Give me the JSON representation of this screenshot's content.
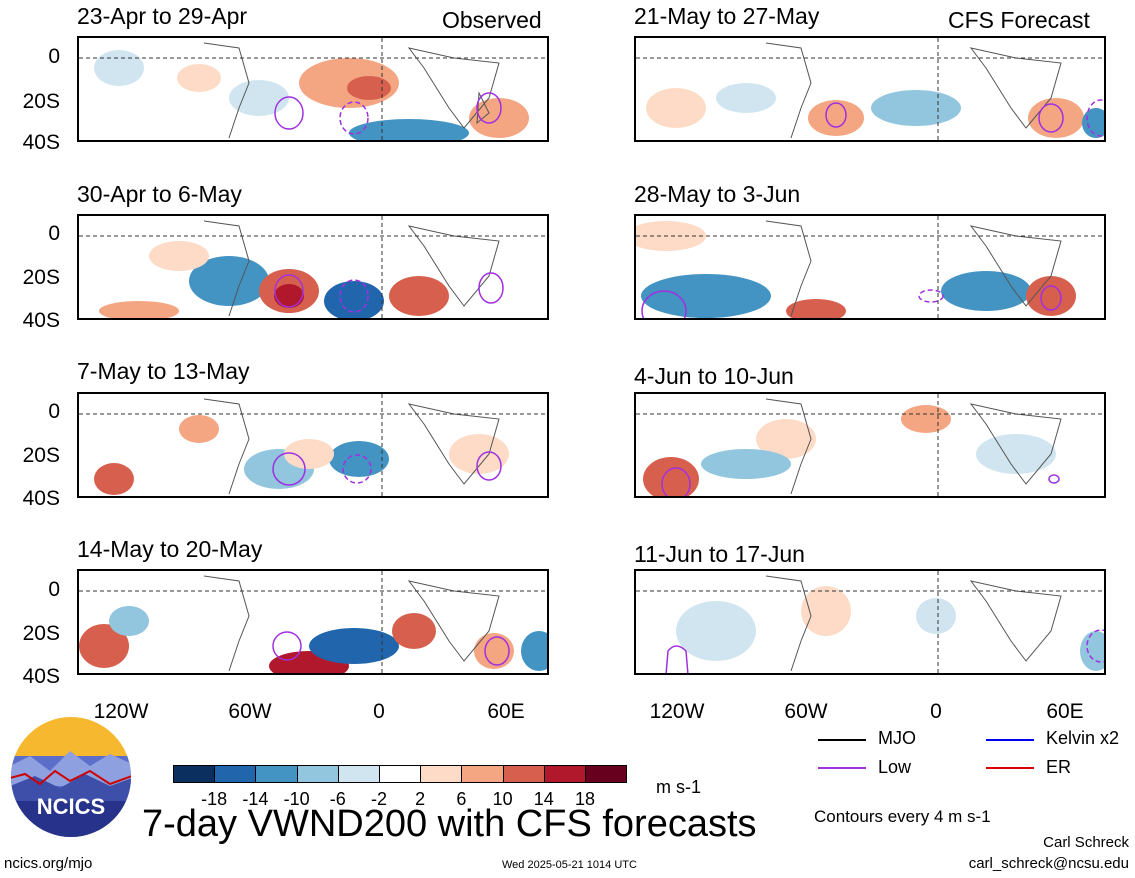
{
  "header": {
    "observed_label": "Observed",
    "forecast_label": "CFS Forecast"
  },
  "observed_panels": [
    {
      "title": "23-Apr to 29-Apr"
    },
    {
      "title": "30-Apr to 6-May"
    },
    {
      "title": "7-May to 13-May"
    },
    {
      "title": "14-May to 20-May"
    }
  ],
  "forecast_panels": [
    {
      "title": "21-May to 27-May"
    },
    {
      "title": "28-May to 3-Jun"
    },
    {
      "title": "4-Jun to 10-Jun"
    },
    {
      "title": "11-Jun to 17-Jun"
    }
  ],
  "y_axis": [
    "0",
    "20S",
    "40S"
  ],
  "x_axis": [
    "120W",
    "60W",
    "0",
    "60E"
  ],
  "legend": {
    "mjo": "MJO",
    "kelvin": "Kelvin x2",
    "low": "Low",
    "er": "ER",
    "colors": {
      "mjo": "#000000",
      "kelvin": "#0000ee",
      "low": "#a030e0",
      "er": "#dd0000"
    }
  },
  "colorbar": {
    "labels": [
      "-18",
      "-14",
      "-10",
      "-6",
      "-2",
      "2",
      "6",
      "10",
      "14",
      "18"
    ],
    "colors": [
      "#0b2f5e",
      "#2166ac",
      "#4393c3",
      "#92c5de",
      "#d1e5f0",
      "#ffffff",
      "#fddbc7",
      "#f4a582",
      "#d6604d",
      "#b2182b",
      "#67001f"
    ],
    "units": "m s-1"
  },
  "contour_note": "Contours every 4 m s-1",
  "title": "7-day VWND200 with CFS forecasts",
  "logo_text": "NCICS",
  "footer": {
    "url": "ncics.org/mjo",
    "timestamp": "Wed 2025-05-21 1014 UTC",
    "author": "Carl Schreck",
    "email": "carl_schreck@ncsu.edu"
  }
}
